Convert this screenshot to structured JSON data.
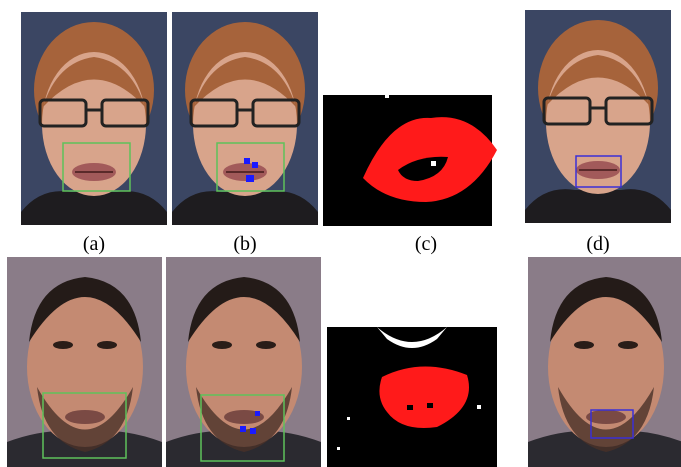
{
  "captions": [
    "(a)",
    "(b)",
    "(c)",
    "(d)"
  ]
}
